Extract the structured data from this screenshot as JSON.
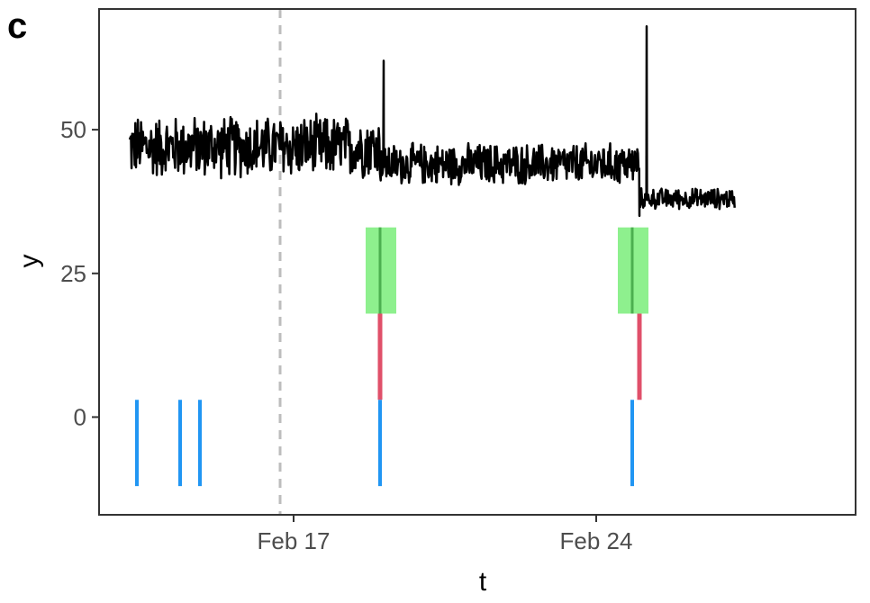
{
  "panel_label": "c",
  "chart_data": {
    "type": "line",
    "xlabel": "t",
    "ylabel": "y",
    "x_unit": "date",
    "xlim": [
      "2024-02-12T12:00",
      "2024-03-01T00:00"
    ],
    "ylim": [
      -17,
      71
    ],
    "x_ticks": [
      {
        "date": "2024-02-17",
        "label": "Feb 17"
      },
      {
        "date": "2024-02-24",
        "label": "Feb 24"
      }
    ],
    "y_ticks": [
      0,
      25,
      50
    ],
    "grid": false,
    "legend": "none",
    "colors": {
      "line": "#000000",
      "vline": "#bdbdbd",
      "blue": "#2196f3",
      "red": "#e0506a",
      "green_fill": "#8ef08e",
      "green_line": "#4caf50"
    },
    "series": [
      {
        "segments": [
          {
            "start": "2024-02-13T05:00",
            "end": "2024-02-19T00:00",
            "center": 47,
            "amp": 6
          },
          {
            "start": "2024-02-19T00:00",
            "end": "2024-02-25T00:00",
            "center": 44,
            "amp": 4
          },
          {
            "start": "2024-02-25T00:00",
            "end": "2024-02-27T05:00",
            "center": 38,
            "amp": 2
          }
        ],
        "spikes": [
          {
            "date": "2024-02-19T02:00",
            "value": 62
          },
          {
            "date": "2024-02-25T04:00",
            "value": 68
          },
          {
            "date": "2024-02-25T00:00",
            "value": 35
          }
        ]
      }
    ],
    "reference_lines": [
      {
        "date": "2024-02-16T16:30",
        "style": "dashed"
      }
    ],
    "green_bands": [
      {
        "start": "2024-02-18T16:00",
        "end": "2024-02-19T09:00",
        "ymin": 18,
        "ymax": 33,
        "center": "2024-02-19T00:00"
      },
      {
        "start": "2024-02-24T12:00",
        "end": "2024-02-25T05:00",
        "ymin": 18,
        "ymax": 33,
        "center": "2024-02-24T20:00"
      }
    ],
    "red_segments": [
      {
        "date": "2024-02-19T00:00",
        "ymin": 3,
        "ymax": 18
      },
      {
        "date": "2024-02-25T00:00",
        "ymin": 3,
        "ymax": 18
      }
    ],
    "blue_marks": [
      {
        "date": "2024-02-13T09:00",
        "ymin": -12,
        "ymax": 3
      },
      {
        "date": "2024-02-14T09:00",
        "ymin": -12,
        "ymax": 3
      },
      {
        "date": "2024-02-14T20:00",
        "ymin": -12,
        "ymax": 3
      },
      {
        "date": "2024-02-19T00:00",
        "ymin": -12,
        "ymax": 3
      },
      {
        "date": "2024-02-24T20:00",
        "ymin": -12,
        "ymax": 3
      }
    ]
  }
}
